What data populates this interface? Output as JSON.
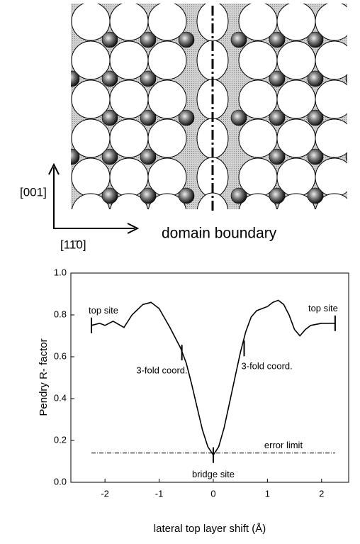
{
  "diagram": {
    "axis_vertical": "[001]",
    "axis_horizontal": "[11̄0]",
    "caption": "domain boundary"
  },
  "chart_data": {
    "type": "line",
    "xlabel": "lateral top layer shift (Å)",
    "ylabel": "Pendry R- factor",
    "xlim": [
      -2.63,
      2.5
    ],
    "ylim": [
      0,
      1
    ],
    "xticks": [
      -2,
      -1,
      0,
      1,
      2
    ],
    "yticks": [
      {
        "value": 0,
        "label": "0.0"
      },
      0.2,
      0.4,
      0.6,
      0.8,
      {
        "value": 1,
        "label": "1.0"
      }
    ],
    "color": "#000000",
    "x": [
      -2.25,
      -2.1,
      -2.0,
      -1.85,
      -1.65,
      -1.5,
      -1.3,
      -1.15,
      -1.0,
      -0.8,
      -0.6,
      -0.5,
      -0.4,
      -0.3,
      -0.2,
      -0.1,
      0,
      0.1,
      0.2,
      0.3,
      0.4,
      0.5,
      0.6,
      0.7,
      0.8,
      0.9,
      1.0,
      1.1,
      1.2,
      1.3,
      1.4,
      1.5,
      1.6,
      1.7,
      1.8,
      2.0,
      2.25
    ],
    "values": [
      0.75,
      0.76,
      0.75,
      0.77,
      0.74,
      0.8,
      0.85,
      0.86,
      0.83,
      0.74,
      0.64,
      0.57,
      0.47,
      0.36,
      0.25,
      0.17,
      0.13,
      0.17,
      0.26,
      0.38,
      0.5,
      0.62,
      0.72,
      0.79,
      0.82,
      0.83,
      0.84,
      0.86,
      0.87,
      0.85,
      0.8,
      0.73,
      0.7,
      0.73,
      0.75,
      0.76,
      0.76
    ],
    "error_limit": {
      "label": "error limit",
      "value": 0.14,
      "x": [
        -2.25,
        2.25
      ]
    },
    "markers": [
      {
        "label": "top site",
        "x": -2.25,
        "y": 0.75
      },
      {
        "label": "3-fold coord.",
        "x": -0.58,
        "y": 0.62
      },
      {
        "label": "bridge site",
        "x": 0,
        "y": 0.13
      },
      {
        "label": "3-fold coord.",
        "x": 0.57,
        "y": 0.64
      },
      {
        "label": "top site",
        "x": 2.25,
        "y": 0.76
      }
    ]
  }
}
